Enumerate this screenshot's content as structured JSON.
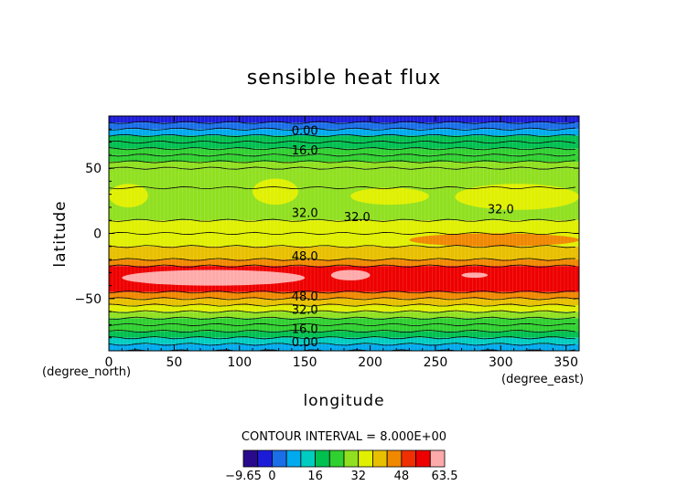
{
  "chart_data": {
    "type": "heatmap",
    "title": "sensible heat flux",
    "xlabel": "longitude",
    "ylabel": "latitude",
    "x_unit": "(degree_east)",
    "y_unit": "(degree_north)",
    "xlim": [
      0,
      360
    ],
    "ylim": [
      -90,
      90
    ],
    "x_ticks": [
      "0",
      "50",
      "100",
      "150",
      "200",
      "250",
      "300",
      "350"
    ],
    "y_ticks": [
      "50",
      "0",
      "-50"
    ],
    "contour_interval_text": "CONTOUR INTERVAL = 8.000E+00",
    "colorbar_ticks": [
      "-9.65",
      "0",
      "16",
      "32",
      "48",
      "63.5"
    ],
    "contour_labels": [
      "0.00",
      "16.0",
      "32.0",
      "32.0",
      "32.0",
      "48.0",
      "48.0",
      "32.0",
      "16.0",
      "0.00"
    ],
    "colors": [
      "#2a0a8c",
      "#1c1cd8",
      "#1a6ee8",
      "#00aaee",
      "#00ccc0",
      "#00c050",
      "#30d030",
      "#90e020",
      "#e0f000",
      "#e8c000",
      "#f08800",
      "#f03000",
      "#ee0000",
      "#ffaaaa"
    ],
    "lat_bands": [
      {
        "lat_min": 85,
        "lat_max": 90,
        "value": -6
      },
      {
        "lat_min": 80,
        "lat_max": 85,
        "value": -2
      },
      {
        "lat_min": 75,
        "lat_max": 80,
        "value": 3
      },
      {
        "lat_min": 70,
        "lat_max": 75,
        "value": 8
      },
      {
        "lat_min": 65,
        "lat_max": 70,
        "value": 13
      },
      {
        "lat_min": 60,
        "lat_max": 65,
        "value": 18
      },
      {
        "lat_min": 55,
        "lat_max": 60,
        "value": 22
      },
      {
        "lat_min": 50,
        "lat_max": 55,
        "value": 26
      },
      {
        "lat_min": 35,
        "lat_max": 50,
        "value": 29
      },
      {
        "lat_min": 10,
        "lat_max": 35,
        "value": 31
      },
      {
        "lat_min": 0,
        "lat_max": 10,
        "value": 34
      },
      {
        "lat_min": -10,
        "lat_max": 0,
        "value": 38
      },
      {
        "lat_min": -20,
        "lat_max": -10,
        "value": 42
      },
      {
        "lat_min": -25,
        "lat_max": -20,
        "value": 46
      },
      {
        "lat_min": -45,
        "lat_max": -25,
        "value": 55
      },
      {
        "lat_min": -50,
        "lat_max": -45,
        "value": 45
      },
      {
        "lat_min": -55,
        "lat_max": -50,
        "value": 40
      },
      {
        "lat_min": -60,
        "lat_max": -55,
        "value": 34
      },
      {
        "lat_min": -65,
        "lat_max": -60,
        "value": 28
      },
      {
        "lat_min": -70,
        "lat_max": -65,
        "value": 22
      },
      {
        "lat_min": -75,
        "lat_max": -70,
        "value": 17
      },
      {
        "lat_min": -80,
        "lat_max": -75,
        "value": 12
      },
      {
        "lat_min": -85,
        "lat_max": -80,
        "value": 5
      },
      {
        "lat_min": -90,
        "lat_max": -85,
        "value": 0
      }
    ],
    "patches": [
      {
        "lon": [
          0,
          30
        ],
        "lat": [
          20,
          38
        ],
        "value": 35
      },
      {
        "lon": [
          110,
          145
        ],
        "lat": [
          22,
          42
        ],
        "value": 35
      },
      {
        "lon": [
          185,
          245
        ],
        "lat": [
          22,
          35
        ],
        "value": 35
      },
      {
        "lon": [
          265,
          360
        ],
        "lat": [
          18,
          38
        ],
        "value": 35
      },
      {
        "lon": [
          10,
          150
        ],
        "lat": [
          -40,
          -28
        ],
        "value": 58
      },
      {
        "lon": [
          170,
          200
        ],
        "lat": [
          -36,
          -28
        ],
        "value": 58
      },
      {
        "lon": [
          270,
          290
        ],
        "lat": [
          -34,
          -30
        ],
        "value": 58
      },
      {
        "lon": [
          230,
          360
        ],
        "lat": [
          -10,
          0
        ],
        "value": 44
      }
    ]
  }
}
